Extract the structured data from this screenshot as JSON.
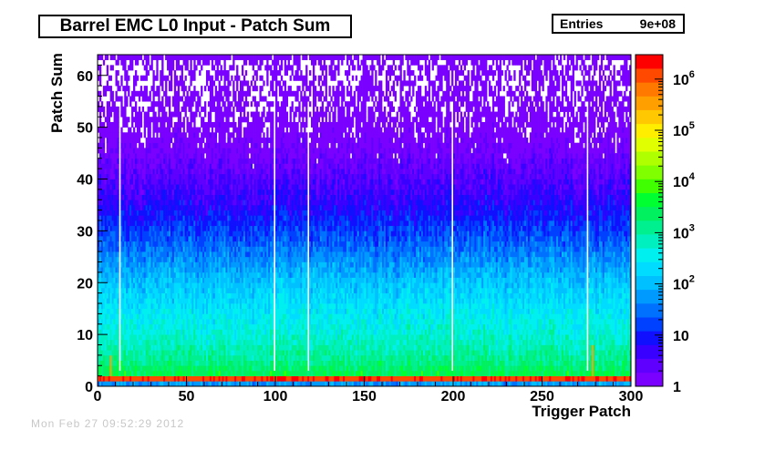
{
  "title": "Barrel EMC L0 Input - Patch Sum",
  "stats": {
    "entries_label": "Entries",
    "entries_value": "9e+08"
  },
  "footer_stamp": "Mon Feb 27 09:52:29 2012",
  "chart_data": {
    "type": "heatmap",
    "title": "Barrel EMC L0 Input - Patch Sum",
    "xlabel": "Trigger Patch",
    "ylabel": "Patch Sum",
    "xlim": [
      0,
      300
    ],
    "ylim": [
      0,
      64
    ],
    "x_ticks": [
      0,
      50,
      100,
      150,
      200,
      250,
      300
    ],
    "y_ticks": [
      0,
      10,
      20,
      30,
      40,
      50,
      60
    ],
    "z_scale": "log",
    "zlim": [
      1,
      3000000
    ],
    "z_tick_labels": [
      {
        "value": 1,
        "base": "1",
        "exp": ""
      },
      {
        "value": 10,
        "base": "10",
        "exp": ""
      },
      {
        "value": 100,
        "base": "10",
        "exp": "2"
      },
      {
        "value": 1000,
        "base": "10",
        "exp": "3"
      },
      {
        "value": 10000,
        "base": "10",
        "exp": "4"
      },
      {
        "value": 100000,
        "base": "10",
        "exp": "5"
      },
      {
        "value": 1000000,
        "base": "10",
        "exp": "6"
      }
    ],
    "palette": [
      "#7a00ff",
      "#5f00ff",
      "#3a00ff",
      "#1010ff",
      "#0040ff",
      "#0070ff",
      "#009aff",
      "#00c0ff",
      "#00dcff",
      "#00f0f0",
      "#00f0c0",
      "#00f090",
      "#00f060",
      "#00ff30",
      "#40ff00",
      "#80ff00",
      "#b0ff00",
      "#e0ff00",
      "#ffee00",
      "#ffc800",
      "#ffa000",
      "#ff7800",
      "#ff4800",
      "#ff0000"
    ],
    "description_profile": {
      "pedestal_bin_value": 1500000,
      "mean_count_at_sum": [
        [
          0,
          60
        ],
        [
          1,
          300000
        ],
        [
          2,
          3000
        ],
        [
          5,
          1200
        ],
        [
          10,
          500
        ],
        [
          15,
          250
        ],
        [
          20,
          120
        ],
        [
          25,
          40
        ],
        [
          30,
          15
        ],
        [
          35,
          6
        ],
        [
          40,
          3
        ],
        [
          45,
          1.5
        ],
        [
          50,
          0.8
        ],
        [
          60,
          0.5
        ]
      ],
      "dead_patches": [
        12,
        99,
        118,
        199,
        275
      ],
      "hot_patches": [
        [
          7,
          5
        ],
        [
          278,
          7
        ]
      ],
      "overflow_row_sum": 63
    }
  }
}
